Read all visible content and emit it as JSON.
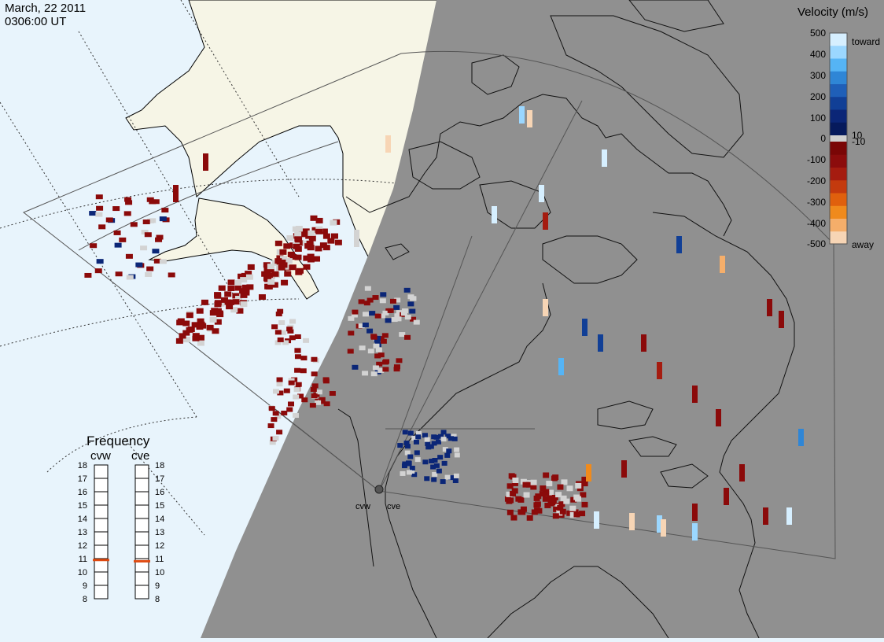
{
  "timestamp": {
    "date": "March, 22 2011",
    "time": "0306:00 UT"
  },
  "colors": {
    "ocean": "#e8f4fc",
    "night_shade": "#909090",
    "land": "#f6f5e6",
    "range_gate_grey": "#d3d3d3"
  },
  "radars": [
    {
      "id": "cvw",
      "label": "cvw"
    },
    {
      "id": "cve",
      "label": "cve"
    }
  ],
  "velocity_scale": {
    "title": "Velocity (m/s)",
    "ticks": [
      "500",
      "400",
      "300",
      "200",
      "100",
      "10",
      "0",
      "-10",
      "-100",
      "-200",
      "-300",
      "-400",
      "-500"
    ],
    "toward_label": "toward",
    "away_label": "away",
    "colors_toward": [
      "#d6efff",
      "#9bd7ff",
      "#55b4f5",
      "#2f86d6",
      "#1f5fb8",
      "#113f96",
      "#0b2677",
      "#061a5c"
    ],
    "colors_away": [
      "#f7d5b5",
      "#f5ae6a",
      "#f08a1c",
      "#e0600d",
      "#c43a0e",
      "#a51c10",
      "#8c0c0c",
      "#7a0606"
    ]
  },
  "frequency_panel": {
    "title": "Frequency",
    "columns": [
      {
        "label": "cvw",
        "frequency_mhz": 10.9
      },
      {
        "label": "cve",
        "frequency_mhz": 10.8
      }
    ],
    "ticks": [
      "18",
      "17",
      "16",
      "15",
      "14",
      "13",
      "12",
      "11",
      "10",
      "9",
      "8"
    ]
  }
}
